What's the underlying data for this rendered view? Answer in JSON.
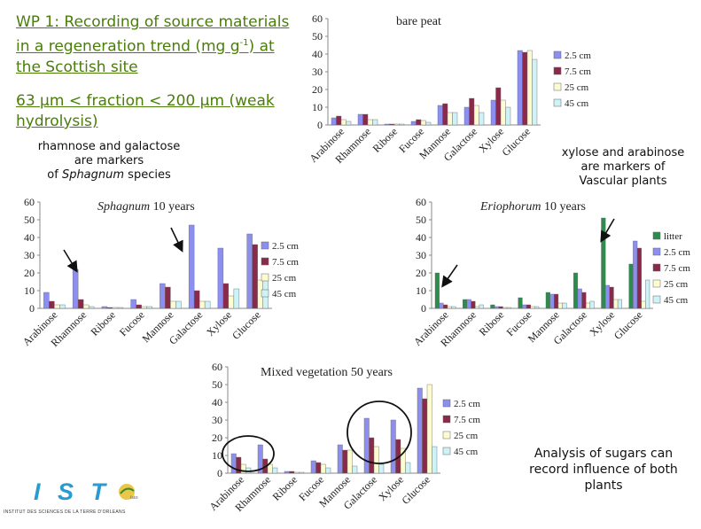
{
  "header": {
    "title_pre": "WP 1: Recording of source materials in a regeneration trend (mg g",
    "title_sup": "-1",
    "title_post": ") at the Scottish  site",
    "subtitle": "63 µm < fraction < 200 µm (weak hydrolysis)"
  },
  "notes": {
    "sphagnum_markers": "rhamnose and galactose are markers",
    "sphagnum_markers_of": "of ",
    "sphagnum_markers_species_italic": "Sphagnum",
    "sphagnum_markers_species": " species",
    "vascular_markers": "xylose and arabinose are markers of Vascular plants",
    "analysis": "Analysis of sugars can record influence of both plants"
  },
  "logo": {
    "letters": "I S T",
    "subtext": "INSTITUT DES SCIENCES DE LA TERRE D'ORLEANS",
    "badge": "isto"
  },
  "colors": {
    "litter": "#2f8a4e",
    "cm2_5": "#8c8ff0",
    "cm7_5": "#8a2a4a",
    "cm25": "#fdfbd0",
    "cm45": "#cdf2f7",
    "title_green": "#4a7d0a"
  },
  "chart_data": [
    {
      "id": "bare-peat",
      "type": "bar",
      "title": "bare peat",
      "title_italic": "",
      "categories": [
        "Arabinose",
        "Rhamnose",
        "Ribose",
        "Fucose",
        "Mannose",
        "Galactose",
        "Xylose",
        "Glucose"
      ],
      "yticks": [
        0,
        10,
        20,
        30,
        40,
        50,
        60
      ],
      "ylim": [
        0,
        60
      ],
      "series": [
        {
          "name": "2.5 cm",
          "color_key": "cm2_5",
          "values": [
            4,
            6,
            0.5,
            2,
            11,
            10,
            14,
            42
          ]
        },
        {
          "name": "7.5 cm",
          "color_key": "cm7_5",
          "values": [
            5,
            6,
            0.5,
            3,
            12,
            15,
            21,
            41
          ]
        },
        {
          "name": "25 cm",
          "color_key": "cm25",
          "values": [
            3,
            3,
            0.5,
            2.5,
            7,
            11,
            14,
            42
          ]
        },
        {
          "name": "45 cm",
          "color_key": "cm45",
          "values": [
            2,
            3,
            0.5,
            1.5,
            7,
            7,
            10,
            37
          ]
        }
      ]
    },
    {
      "id": "sphagnum",
      "type": "bar",
      "title": "Sphagnum",
      "title_italic": "yes",
      "title_suffix": "10 years",
      "categories": [
        "Arabinose",
        "Rhamnose",
        "Ribose",
        "Fucose",
        "Mannose",
        "Galactose",
        "Xylose",
        "Glucose"
      ],
      "yticks": [
        0,
        10,
        20,
        30,
        40,
        50,
        60
      ],
      "ylim": [
        0,
        60
      ],
      "series": [
        {
          "name": "2.5 cm",
          "color_key": "cm2_5",
          "values": [
            9,
            22,
            1,
            5,
            14,
            47,
            34,
            42
          ]
        },
        {
          "name": "7.5 cm",
          "color_key": "cm7_5",
          "values": [
            4,
            5,
            0.5,
            2,
            12,
            10,
            14,
            36
          ]
        },
        {
          "name": "25 cm",
          "color_key": "cm25",
          "values": [
            2,
            2,
            0.5,
            1,
            4,
            4,
            7,
            16
          ]
        },
        {
          "name": "45 cm",
          "color_key": "cm45",
          "values": [
            2,
            1,
            0.5,
            1,
            4,
            4,
            11,
            19
          ]
        }
      ]
    },
    {
      "id": "eriophorum",
      "type": "bar",
      "title": "Eriophorum",
      "title_italic": "yes",
      "title_suffix": "10 years",
      "categories": [
        "Arabinose",
        "Rhamnose",
        "Ribose",
        "Fucose",
        "Mannose",
        "Galactose",
        "Xylose",
        "Glucose"
      ],
      "yticks": [
        0,
        10,
        20,
        30,
        40,
        50,
        60
      ],
      "ylim": [
        0,
        60
      ],
      "series": [
        {
          "name": "litter",
          "color_key": "litter",
          "values": [
            20,
            5,
            2,
            6,
            9,
            20,
            51,
            25
          ]
        },
        {
          "name": "2.5 cm",
          "color_key": "cm2_5",
          "values": [
            3,
            5,
            1,
            2,
            8,
            11,
            13,
            38
          ]
        },
        {
          "name": "7.5 cm",
          "color_key": "cm7_5",
          "values": [
            2,
            4,
            1,
            2,
            8,
            9,
            12,
            34
          ]
        },
        {
          "name": "25 cm",
          "color_key": "cm25",
          "values": [
            1,
            1,
            0.5,
            1,
            3,
            3,
            5,
            4
          ]
        },
        {
          "name": "45 cm",
          "color_key": "cm45",
          "values": [
            1,
            2,
            0.5,
            1,
            3,
            4,
            5,
            16
          ]
        }
      ]
    },
    {
      "id": "mixed",
      "type": "bar",
      "title": "Mixed vegetation 50 years",
      "title_italic": "",
      "categories": [
        "Arabinose",
        "Rhamnose",
        "Ribose",
        "Fucose",
        "Mannose",
        "Galactose",
        "Xylose",
        "Glucose"
      ],
      "yticks": [
        0,
        10,
        20,
        30,
        40,
        50,
        60
      ],
      "ylim": [
        0,
        60
      ],
      "series": [
        {
          "name": "2.5 cm",
          "color_key": "cm2_5",
          "values": [
            11,
            16,
            1,
            7,
            16,
            31,
            30,
            48
          ]
        },
        {
          "name": "7.5 cm",
          "color_key": "cm7_5",
          "values": [
            9,
            8,
            1,
            6,
            13,
            20,
            19,
            42
          ]
        },
        {
          "name": "25 cm",
          "color_key": "cm25",
          "values": [
            5,
            5,
            0.5,
            5,
            13,
            15,
            14,
            50
          ]
        },
        {
          "name": "45 cm",
          "color_key": "cm45",
          "values": [
            3,
            3,
            0.5,
            3,
            4,
            5,
            6,
            15
          ]
        }
      ]
    }
  ]
}
